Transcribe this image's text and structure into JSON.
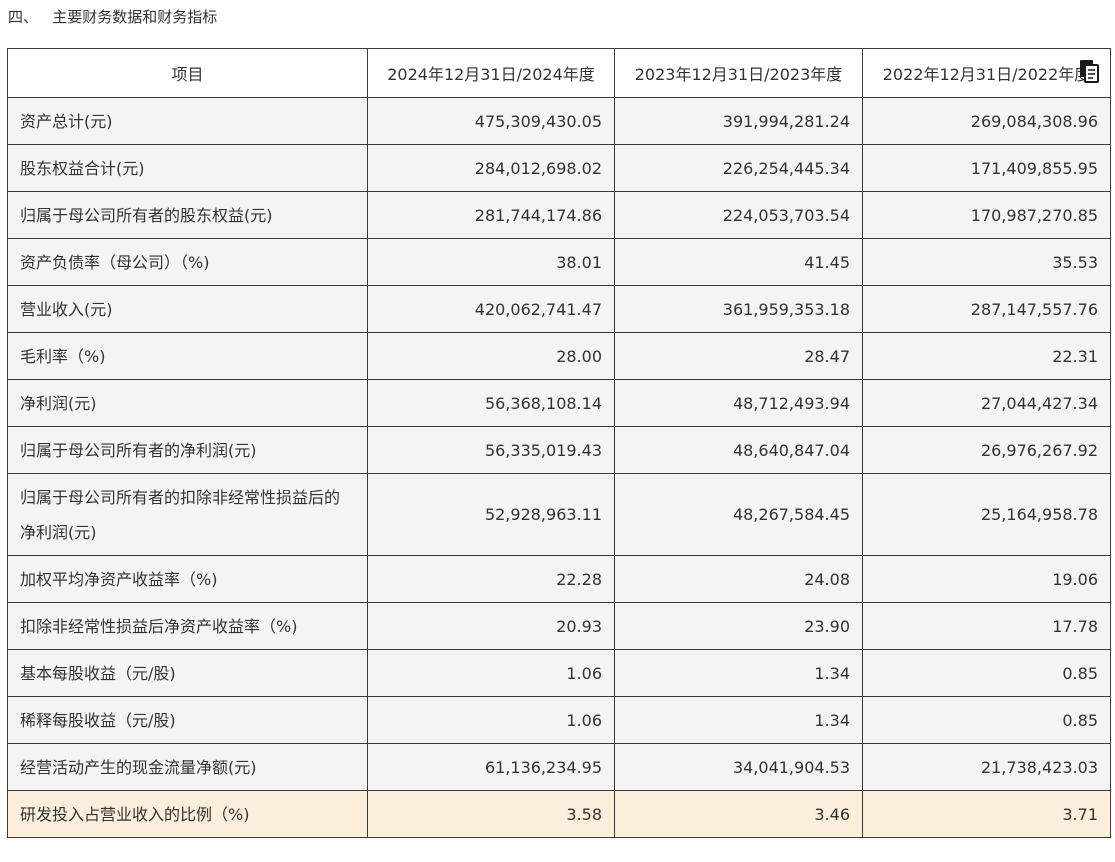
{
  "section_title": "四、   主要财务数据和财务指标",
  "table": {
    "headers": [
      "项目",
      "2024年12月31日/2024年度",
      "2023年12月31日/2023年度",
      "2022年12月31日/2022年度"
    ],
    "rows": [
      {
        "label": "资产总计(元)",
        "values": [
          "475,309,430.05",
          "391,994,281.24",
          "269,084,308.96"
        ]
      },
      {
        "label": "股东权益合计(元)",
        "values": [
          "284,012,698.02",
          "226,254,445.34",
          "171,409,855.95"
        ]
      },
      {
        "label": "归属于母公司所有者的股东权益(元)",
        "values": [
          "281,744,174.86",
          "224,053,703.54",
          "170,987,270.85"
        ]
      },
      {
        "label": "资产负债率（母公司）（%)",
        "values": [
          "38.01",
          "41.45",
          "35.53"
        ]
      },
      {
        "label": "营业收入(元)",
        "values": [
          "420,062,741.47",
          "361,959,353.18",
          "287,147,557.76"
        ]
      },
      {
        "label": "毛利率（%)",
        "values": [
          "28.00",
          "28.47",
          "22.31"
        ]
      },
      {
        "label": "净利润(元)",
        "values": [
          "56,368,108.14",
          "48,712,493.94",
          "27,044,427.34"
        ]
      },
      {
        "label": "归属于母公司所有者的净利润(元)",
        "values": [
          "56,335,019.43",
          "48,640,847.04",
          "26,976,267.92"
        ]
      },
      {
        "label": "归属于母公司所有者的扣除非经常性损益后的净利润(元)",
        "values": [
          "52,928,963.11",
          "48,267,584.45",
          "25,164,958.78"
        ]
      },
      {
        "label": "加权平均净资产收益率（%)",
        "values": [
          "22.28",
          "24.08",
          "19.06"
        ]
      },
      {
        "label": "扣除非经常性损益后净资产收益率（%)",
        "values": [
          "20.93",
          "23.90",
          "17.78"
        ]
      },
      {
        "label": "基本每股收益（元/股)",
        "values": [
          "1.06",
          "1.34",
          "0.85"
        ]
      },
      {
        "label": "稀释每股收益（元/股)",
        "values": [
          "1.06",
          "1.34",
          "0.85"
        ]
      },
      {
        "label": "经营活动产生的现金流量净额(元)",
        "values": [
          "61,136,234.95",
          "34,041,904.53",
          "21,738,423.03"
        ]
      },
      {
        "label": "研发投入占营业收入的比例（%)",
        "values": [
          "3.58",
          "3.46",
          "3.71"
        ]
      }
    ]
  },
  "icons": {
    "copy": "copy-icon"
  },
  "colors": {
    "highlight_row": "#fbeedb",
    "row_bg": "#f4f4f4",
    "border": "#3a3a3a"
  }
}
